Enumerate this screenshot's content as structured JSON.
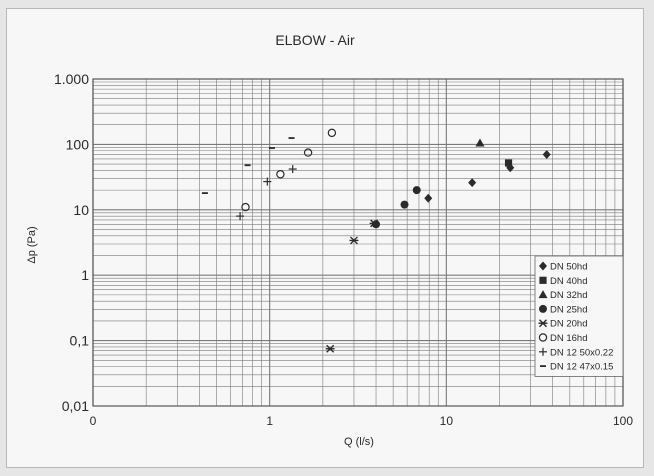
{
  "chart_data": {
    "type": "scatter",
    "title": "ELBOW - Air",
    "xlabel": "Q (l/s)",
    "ylabel": "Δp (Pa)",
    "xscale": "log",
    "yscale": "log",
    "xlim": [
      0.1,
      100
    ],
    "ylim": [
      0.01,
      1000
    ],
    "xticks": [
      {
        "value": 0.1,
        "label": "0"
      },
      {
        "value": 1,
        "label": "1"
      },
      {
        "value": 10,
        "label": "10"
      },
      {
        "value": 100,
        "label": "100"
      }
    ],
    "yticks": [
      {
        "value": 1000,
        "label": "1.000"
      },
      {
        "value": 100,
        "label": "100"
      },
      {
        "value": 10,
        "label": "10"
      },
      {
        "value": 1,
        "label": "1"
      },
      {
        "value": 0.1,
        "label": "0,1"
      },
      {
        "value": 0.01,
        "label": "0,01"
      }
    ],
    "grid": true,
    "legend_position": "bottom-right",
    "series": [
      {
        "name": "DN 50hd",
        "marker": "diamond",
        "points": [
          [
            7.9,
            15
          ],
          [
            14,
            26
          ],
          [
            23,
            44
          ],
          [
            37,
            70
          ]
        ]
      },
      {
        "name": "DN 40hd",
        "marker": "square",
        "points": [
          [
            22.5,
            52
          ]
        ]
      },
      {
        "name": "DN 32hd",
        "marker": "triangle",
        "points": [
          [
            15.5,
            105
          ]
        ]
      },
      {
        "name": "DN 25hd",
        "marker": "circle",
        "points": [
          [
            4,
            6
          ],
          [
            5.8,
            12
          ],
          [
            6.8,
            20
          ]
        ]
      },
      {
        "name": "DN 20hd",
        "marker": "star",
        "points": [
          [
            2.2,
            0.075
          ],
          [
            3,
            3.4
          ],
          [
            3.9,
            6.2
          ]
        ]
      },
      {
        "name": "DN 16hd",
        "marker": "open-circle",
        "points": [
          [
            0.73,
            11
          ],
          [
            1.15,
            35
          ],
          [
            1.65,
            75
          ],
          [
            2.25,
            150
          ]
        ]
      },
      {
        "name": "DN 12 50x0.22",
        "marker": "plus",
        "points": [
          [
            0.68,
            8
          ],
          [
            0.97,
            27
          ],
          [
            1.35,
            42
          ]
        ]
      },
      {
        "name": "DN 12 47x0.15",
        "marker": "dash",
        "points": [
          [
            0.43,
            18
          ],
          [
            0.75,
            48
          ],
          [
            1.03,
            88
          ],
          [
            1.33,
            125
          ]
        ]
      }
    ]
  },
  "colors": {
    "marker": "#2b2b2b",
    "grid": "#7a7a7a",
    "background": "#f7f7f7"
  }
}
